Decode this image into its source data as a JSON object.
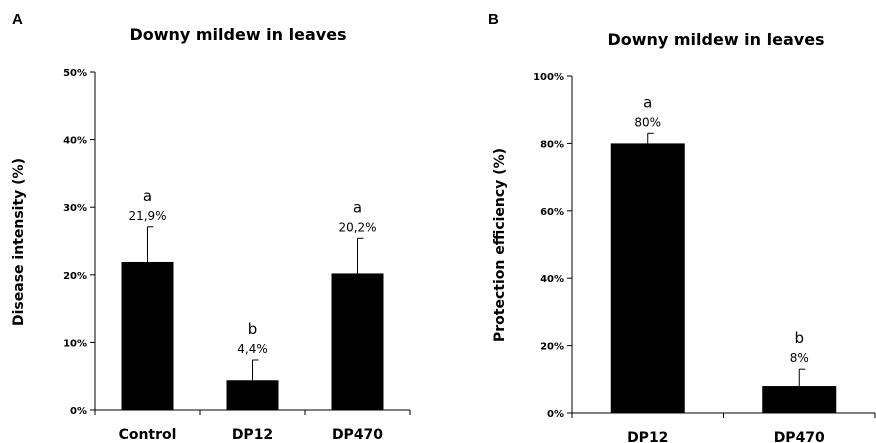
{
  "chart_data": [
    {
      "panel": "A",
      "type": "bar",
      "title": "Downy mildew in leaves",
      "xlabel": "",
      "ylabel": "Disease intensity (%)",
      "ylim": [
        0,
        50
      ],
      "yticks": [
        "0%",
        "10%",
        "20%",
        "30%",
        "40%",
        "50%"
      ],
      "categories": [
        "Control",
        "DP12",
        "DP470"
      ],
      "values": [
        21.9,
        4.4,
        20.2
      ],
      "errors": [
        5.2,
        3.0,
        5.2
      ],
      "value_labels": [
        "21,9%",
        "4,4%",
        "20,2%"
      ],
      "significance": [
        "a",
        "b",
        "a"
      ],
      "bar_color": "#000000",
      "grid": false,
      "legend": "none"
    },
    {
      "panel": "B",
      "type": "bar",
      "title": "Downy mildew in leaves",
      "xlabel": "",
      "ylabel": "Protection efficiency (%)",
      "ylim": [
        0,
        100
      ],
      "yticks": [
        "0%",
        "20%",
        "40%",
        "60%",
        "80%",
        "100%"
      ],
      "categories": [
        "DP12",
        "DP470"
      ],
      "values": [
        80,
        8
      ],
      "errors": [
        3,
        5
      ],
      "value_labels": [
        "80%",
        "8%"
      ],
      "significance": [
        "a",
        "b"
      ],
      "bar_color": "#000000",
      "grid": false,
      "legend": "none"
    }
  ]
}
